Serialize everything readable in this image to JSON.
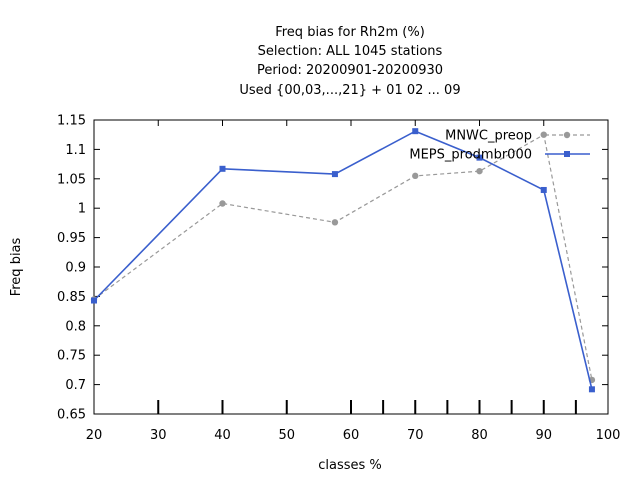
{
  "chart_data": {
    "type": "line",
    "title_lines": [
      "Freq bias  for Rh2m (%)",
      "Selection: ALL    1045 stations",
      "Period: 20200901-20200930",
      "Used {00,03,...,21} + 01 02 ... 09"
    ],
    "xlabel": "classes %",
    "ylabel": "Freq bias",
    "xlim": [
      20,
      100
    ],
    "ylim": [
      0.65,
      1.15
    ],
    "xticks": [
      20,
      30,
      40,
      50,
      60,
      70,
      80,
      90,
      100
    ],
    "yticks": [
      0.65,
      0.7,
      0.75,
      0.8,
      0.85,
      0.9,
      0.95,
      1,
      1.05,
      1.1,
      1.15
    ],
    "xtick_labels": [
      "20",
      "30",
      "40",
      "50",
      "60",
      "70",
      "80",
      "90",
      "100"
    ],
    "ytick_labels": [
      "0.65",
      "0.7",
      "0.75",
      "0.8",
      "0.85",
      "0.9",
      "0.95",
      "1",
      "1.05",
      "1.1",
      "1.15"
    ],
    "bottom_marks": [
      30,
      40,
      50,
      60,
      65,
      70,
      75,
      80,
      85,
      90,
      95
    ],
    "legend_position": "top-right",
    "grid": false,
    "series": [
      {
        "name": "MNWC_preop",
        "color": "#999999",
        "dashed": true,
        "marker": "circle",
        "x": [
          20,
          40,
          57.5,
          70,
          80,
          90,
          97.5
        ],
        "y": [
          0.845,
          1.008,
          0.976,
          1.055,
          1.063,
          1.125,
          0.708
        ]
      },
      {
        "name": "MEPS_prodmbr000",
        "color": "#3a5fcd",
        "dashed": false,
        "marker": "square",
        "x": [
          20,
          40,
          57.5,
          70,
          80,
          90,
          97.5
        ],
        "y": [
          0.843,
          1.067,
          1.058,
          1.131,
          1.086,
          1.031,
          0.692
        ]
      }
    ]
  }
}
